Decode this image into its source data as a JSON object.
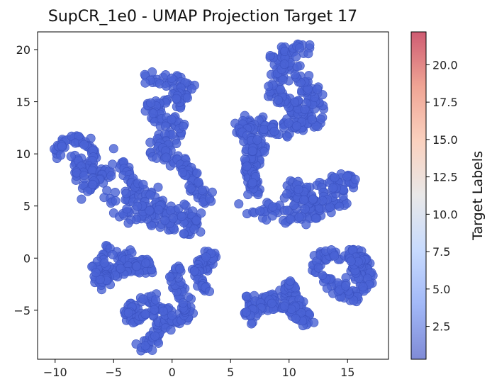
{
  "chart_data": {
    "type": "scatter",
    "title": "SupCR_1e0 - UMAP Projection Target 17",
    "xlabel": "",
    "ylabel": "",
    "xlim": [
      -11.5,
      18.5
    ],
    "ylim": [
      -9.7,
      21.7
    ],
    "xticks": [
      -10,
      -5,
      0,
      5,
      10,
      15
    ],
    "yticks": [
      -5,
      0,
      5,
      10,
      15,
      20
    ],
    "xtick_labels": [
      "−10",
      "−5",
      "0",
      "5",
      "10",
      "15"
    ],
    "ytick_labels": [
      "−5",
      "0",
      "5",
      "10",
      "15",
      "20"
    ],
    "grid": false,
    "point_color": "#4a63d4",
    "point_edge_color": "#3b52c0",
    "colorbar": {
      "label": "Target Labels",
      "range": [
        0.3,
        22.2
      ],
      "ticks": [
        2.5,
        5.0,
        7.5,
        10.0,
        12.5,
        15.0,
        17.5,
        20.0
      ],
      "tick_labels": [
        "2.5",
        "5.0",
        "7.5",
        "10.0",
        "12.5",
        "15.0",
        "17.5",
        "20.0"
      ],
      "colormap": "coolwarm",
      "stops": [
        "#3b4cc0",
        "#6f92f3",
        "#aac7fd",
        "#dddcdc",
        "#f7b89c",
        "#e7745b",
        "#b40426"
      ]
    },
    "clusters": [
      {
        "name": "left-arm",
        "path": [
          [
            -10.3,
            9.8
          ],
          [
            -9.5,
            10.6
          ],
          [
            -8.7,
            11.3
          ],
          [
            -8.0,
            11.5
          ],
          [
            -7.3,
            11.0
          ],
          [
            -6.9,
            10.1
          ],
          [
            -7.3,
            9.4
          ],
          [
            -7.2,
            8.6
          ],
          [
            -6.4,
            8.2
          ],
          [
            -5.6,
            8.0
          ],
          [
            -6.1,
            7.2
          ],
          [
            -7.2,
            6.8
          ],
          [
            -7.6,
            6.1
          ]
        ],
        "w": 0.55
      },
      {
        "name": "left-lobe-upper",
        "path": [
          [
            -8.4,
            9.8
          ],
          [
            -7.8,
            9.2
          ],
          [
            -8.0,
            8.4
          ],
          [
            -7.7,
            7.6
          ]
        ],
        "w": 0.5
      },
      {
        "name": "center-left-band",
        "path": [
          [
            -5.3,
            5.8
          ],
          [
            -4.3,
            6.1
          ],
          [
            -3.3,
            6.3
          ],
          [
            -2.5,
            5.9
          ],
          [
            -1.8,
            5.4
          ],
          [
            -0.8,
            4.9
          ],
          [
            0.2,
            4.7
          ],
          [
            1.2,
            4.3
          ],
          [
            2.0,
            3.6
          ],
          [
            1.9,
            3.0
          ],
          [
            1.2,
            2.8
          ],
          [
            0.3,
            3.2
          ],
          [
            -0.5,
            3.5
          ],
          [
            -1.6,
            3.9
          ],
          [
            -2.6,
            4.3
          ],
          [
            -3.5,
            4.5
          ],
          [
            -4.4,
            3.9
          ]
        ],
        "w": 0.75
      },
      {
        "name": "center-upper-column",
        "path": [
          [
            -1.9,
            17.3
          ],
          [
            -0.6,
            17.2
          ],
          [
            0.6,
            17.0
          ],
          [
            1.4,
            16.1
          ],
          [
            0.8,
            15.2
          ],
          [
            -0.4,
            15.0
          ],
          [
            -1.7,
            14.6
          ],
          [
            -1.4,
            13.5
          ],
          [
            -0.4,
            13.0
          ],
          [
            0.5,
            12.4
          ],
          [
            0.2,
            11.6
          ],
          [
            -0.8,
            11.1
          ],
          [
            -1.5,
            10.5
          ],
          [
            -0.9,
            9.9
          ],
          [
            0.0,
            9.6
          ],
          [
            0.9,
            9.2
          ],
          [
            1.5,
            8.4
          ],
          [
            1.8,
            7.5
          ],
          [
            2.0,
            6.5
          ],
          [
            2.8,
            6.0
          ],
          [
            3.2,
            5.2
          ]
        ],
        "w": 0.7
      },
      {
        "name": "center-upper-branch",
        "path": [
          [
            -4.5,
            9.0
          ],
          [
            -3.9,
            8.4
          ],
          [
            -3.6,
            7.7
          ],
          [
            -3.2,
            7.2
          ],
          [
            -2.6,
            6.9
          ]
        ],
        "w": 0.35
      },
      {
        "name": "lower-left",
        "path": [
          [
            -5.6,
            0.7
          ],
          [
            -4.7,
            0.8
          ],
          [
            -4.1,
            0.1
          ],
          [
            -3.7,
            -0.5
          ],
          [
            -2.6,
            -0.7
          ],
          [
            -1.7,
            -0.9
          ],
          [
            -3.3,
            -1.0
          ],
          [
            -4.6,
            -1.2
          ],
          [
            -5.7,
            -1.6
          ],
          [
            -6.3,
            -2.3
          ],
          [
            -5.5,
            -2.5
          ],
          [
            -6.2,
            -1.0
          ],
          [
            -6.3,
            -0.2
          ]
        ],
        "w": 0.65
      },
      {
        "name": "lower-center",
        "path": [
          [
            -2.9,
            -8.3
          ],
          [
            -2.3,
            -8.4
          ],
          [
            -1.6,
            -8.3
          ],
          [
            -1.6,
            -7.3
          ],
          [
            -1.0,
            -6.4
          ],
          [
            -0.3,
            -5.8
          ],
          [
            0.6,
            -5.6
          ],
          [
            1.2,
            -6.0
          ],
          [
            1.5,
            -5.0
          ],
          [
            1.2,
            -4.0
          ],
          [
            0.7,
            -3.2
          ],
          [
            0.4,
            -2.2
          ],
          [
            0.4,
            -1.4
          ],
          [
            0.1,
            -0.9
          ]
        ],
        "w": 0.5
      },
      {
        "name": "lower-center-loop",
        "path": [
          [
            -1.6,
            -3.8
          ],
          [
            -2.6,
            -4.2
          ],
          [
            -3.5,
            -4.8
          ],
          [
            -3.8,
            -5.4
          ],
          [
            -3.0,
            -6.1
          ],
          [
            -2.1,
            -5.6
          ],
          [
            -1.5,
            -4.8
          ],
          [
            -0.6,
            -4.6
          ],
          [
            -0.3,
            -5.3
          ]
        ],
        "w": 0.45
      },
      {
        "name": "lower-small",
        "path": [
          [
            2.7,
            -1.3
          ],
          [
            3.0,
            -0.6
          ],
          [
            3.5,
            -0.2
          ],
          [
            3.3,
            0.3
          ],
          [
            2.8,
            0.3
          ],
          [
            2.2,
            -0.9
          ],
          [
            1.9,
            -1.4
          ],
          [
            2.6,
            -2.4
          ],
          [
            2.9,
            -3.3
          ]
        ],
        "w": 0.38
      },
      {
        "name": "lower-right-chevron",
        "path": [
          [
            6.3,
            -4.1
          ],
          [
            7.0,
            -4.1
          ],
          [
            7.9,
            -4.0
          ],
          [
            8.8,
            -3.8
          ],
          [
            9.5,
            -3.5
          ],
          [
            9.9,
            -3.0
          ],
          [
            10.0,
            -2.3
          ],
          [
            10.3,
            -3.8
          ],
          [
            10.8,
            -4.7
          ],
          [
            11.3,
            -5.3
          ],
          [
            11.7,
            -6.2
          ],
          [
            11.2,
            -5.9
          ],
          [
            10.4,
            -5.4
          ],
          [
            9.5,
            -4.4
          ],
          [
            8.8,
            -4.5
          ],
          [
            7.6,
            -4.8
          ],
          [
            6.8,
            -5.3
          ],
          [
            6.4,
            -6.1
          ]
        ],
        "w": 0.5
      },
      {
        "name": "right-lower-ring",
        "path": [
          [
            12.0,
            -1.1
          ],
          [
            12.6,
            0.0
          ],
          [
            13.5,
            0.3
          ],
          [
            14.6,
            0.3
          ],
          [
            15.3,
            0.4
          ],
          [
            16.1,
            0.4
          ],
          [
            16.7,
            -0.4
          ],
          [
            16.8,
            -1.2
          ],
          [
            16.6,
            -2.2
          ],
          [
            16.4,
            -3.1
          ],
          [
            15.9,
            -3.7
          ],
          [
            15.2,
            -3.6
          ],
          [
            14.5,
            -3.3
          ],
          [
            13.9,
            -2.6
          ],
          [
            13.3,
            -2.0
          ],
          [
            13.0,
            -1.3
          ]
        ],
        "w": 0.55
      },
      {
        "name": "right-lower-ring-inner",
        "path": [
          [
            15.2,
            -2.4
          ],
          [
            15.6,
            -1.6
          ],
          [
            15.8,
            -0.7
          ],
          [
            15.6,
            -0.1
          ]
        ],
        "w": 0.5
      },
      {
        "name": "right-middle-band",
        "path": [
          [
            7.0,
            4.8
          ],
          [
            8.0,
            4.6
          ],
          [
            9.0,
            4.4
          ],
          [
            10.0,
            4.2
          ],
          [
            11.0,
            4.0
          ],
          [
            12.0,
            4.1
          ],
          [
            13.0,
            4.6
          ],
          [
            13.9,
            5.3
          ],
          [
            14.6,
            6.2
          ],
          [
            15.1,
            7.0
          ],
          [
            15.2,
            7.7
          ],
          [
            14.5,
            7.4
          ],
          [
            13.6,
            7.0
          ],
          [
            12.7,
            6.4
          ],
          [
            11.8,
            5.7
          ],
          [
            10.9,
            5.3
          ],
          [
            10.2,
            5.6
          ],
          [
            10.5,
            6.5
          ],
          [
            11.4,
            6.9
          ],
          [
            11.2,
            6.0
          ]
        ],
        "w": 0.85
      },
      {
        "name": "right-upper-arc",
        "path": [
          [
            5.8,
            12.9
          ],
          [
            6.6,
            13.1
          ],
          [
            7.5,
            12.8
          ],
          [
            8.3,
            12.3
          ],
          [
            9.3,
            12.1
          ],
          [
            10.3,
            12.3
          ],
          [
            11.2,
            12.6
          ],
          [
            12.1,
            13.4
          ],
          [
            12.5,
            14.3
          ],
          [
            12.3,
            15.3
          ],
          [
            11.9,
            16.2
          ],
          [
            11.1,
            17.3
          ],
          [
            10.1,
            17.9
          ],
          [
            9.3,
            18.4
          ],
          [
            8.8,
            19.0
          ],
          [
            9.3,
            19.4
          ],
          [
            10.1,
            19.8
          ],
          [
            10.9,
            20.0
          ],
          [
            11.7,
            19.9
          ]
        ],
        "w": 0.75
      },
      {
        "name": "right-upper-arc-inner",
        "path": [
          [
            10.3,
            12.5
          ],
          [
            10.6,
            13.7
          ],
          [
            10.9,
            14.6
          ],
          [
            10.4,
            15.2
          ],
          [
            9.6,
            14.9
          ],
          [
            9.0,
            15.5
          ],
          [
            8.6,
            16.4
          ],
          [
            9.0,
            17.3
          ],
          [
            9.4,
            18.0
          ]
        ],
        "w": 0.6
      },
      {
        "name": "right-upper-left-spur",
        "path": [
          [
            5.6,
            13.0
          ],
          [
            6.2,
            12.1
          ],
          [
            6.6,
            11.3
          ],
          [
            7.2,
            10.8
          ],
          [
            7.8,
            10.3
          ],
          [
            7.3,
            9.7
          ],
          [
            6.7,
            8.7
          ],
          [
            6.9,
            7.6
          ],
          [
            7.3,
            6.9
          ],
          [
            6.9,
            6.3
          ],
          [
            6.6,
            10.3
          ],
          [
            7.3,
            11.4
          ]
        ],
        "w": 0.5
      },
      {
        "name": "isolated-points",
        "points": [
          [
            -5.0,
            10.5
          ],
          [
            -5.1,
            9.0
          ],
          [
            0.9,
            8.2
          ],
          [
            -1.2,
            6.8
          ],
          [
            2.9,
            0.1
          ],
          [
            -1.4,
            -4.0
          ],
          [
            -0.2,
            -1.8
          ],
          [
            -0.1,
            -6.9
          ],
          [
            10.1,
            -2.2
          ],
          [
            3.2,
            -3.2
          ],
          [
            5.7,
            5.2
          ],
          [
            10.8,
            6.6
          ],
          [
            15.3,
            -0.3
          ],
          [
            -4.4,
            -1.0
          ],
          [
            9.6,
            18.6
          ]
        ]
      }
    ]
  }
}
